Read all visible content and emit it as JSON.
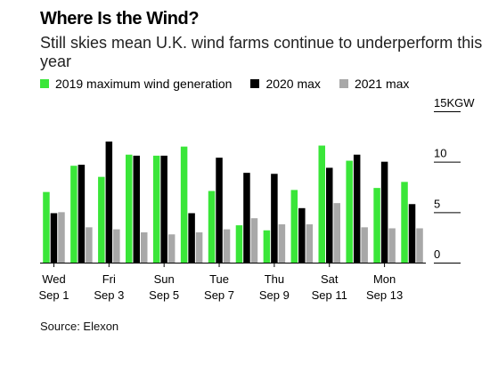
{
  "header": {
    "title": "Where Is the Wind?",
    "subtitle": "Still skies mean U.K. wind farms continue to underperform this year"
  },
  "legend": [
    {
      "label": "2019 maximum wind generation",
      "color": "#3ae639"
    },
    {
      "label": "2020 max",
      "color": "#000000"
    },
    {
      "label": "2021 max",
      "color": "#a8a8a8"
    }
  ],
  "source": "Source: Elexon",
  "chart_data": {
    "type": "bar",
    "categories": [
      "Sep 1",
      "Sep 2",
      "Sep 3",
      "Sep 4",
      "Sep 5",
      "Sep 6",
      "Sep 7",
      "Sep 8",
      "Sep 9",
      "Sep 10",
      "Sep 11",
      "Sep 12",
      "Sep 13",
      "Sep 14"
    ],
    "x_tick_labels": [
      {
        "day": "Wed",
        "date": "Sep 1",
        "index": 0
      },
      {
        "day": "Fri",
        "date": "Sep 3",
        "index": 2
      },
      {
        "day": "Sun",
        "date": "Sep 5",
        "index": 4
      },
      {
        "day": "Tue",
        "date": "Sep 7",
        "index": 6
      },
      {
        "day": "Thu",
        "date": "Sep 9",
        "index": 8
      },
      {
        "day": "Sat",
        "date": "Sep 11",
        "index": 10
      },
      {
        "day": "Mon",
        "date": "Sep 13",
        "index": 12
      }
    ],
    "series": [
      {
        "name": "2019 maximum wind generation",
        "color": "#3ae639",
        "values": [
          7.0,
          9.6,
          8.5,
          10.7,
          10.6,
          11.5,
          7.1,
          3.7,
          3.2,
          7.2,
          11.6,
          10.1,
          7.4,
          8.0
        ]
      },
      {
        "name": "2020 max",
        "color": "#000000",
        "values": [
          4.9,
          9.7,
          12.0,
          10.6,
          10.6,
          4.9,
          10.4,
          8.9,
          8.8,
          5.4,
          9.4,
          10.7,
          10.0,
          5.8
        ]
      },
      {
        "name": "2021 max",
        "color": "#a8a8a8",
        "values": [
          5.0,
          3.5,
          3.3,
          3.0,
          2.8,
          3.0,
          3.3,
          4.4,
          3.8,
          3.8,
          5.9,
          3.5,
          3.4,
          3.4
        ]
      }
    ],
    "y_ticks": [
      "0",
      "5",
      "10",
      "15KGW"
    ],
    "ylim": [
      0,
      15
    ],
    "grid": false
  }
}
